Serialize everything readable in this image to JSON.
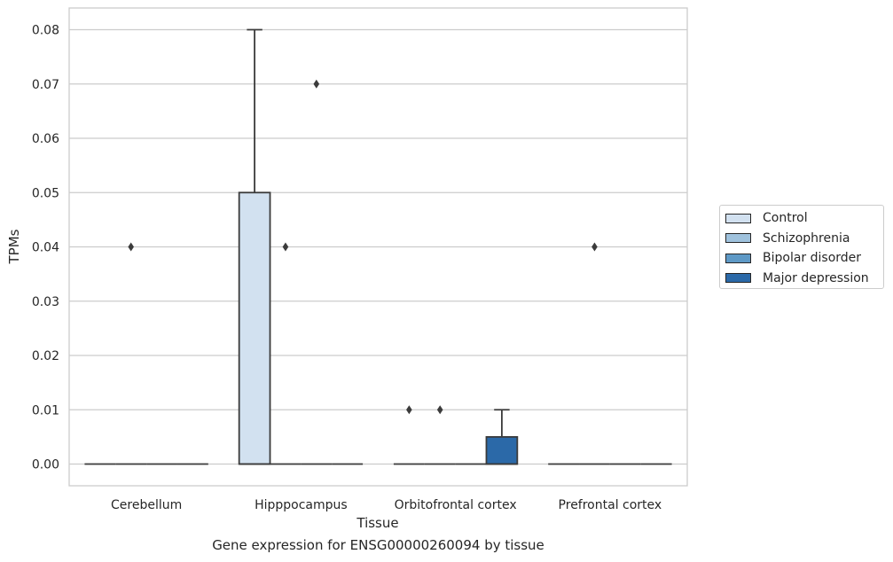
{
  "chart_data": {
    "type": "box",
    "xlabel": "Tissue",
    "ylabel": "TPMs",
    "caption": "Gene expression for ENSG00000260094 by tissue",
    "ylim": [
      -0.004,
      0.084
    ],
    "yticks": [
      "0.00",
      "0.01",
      "0.02",
      "0.03",
      "0.04",
      "0.05",
      "0.06",
      "0.07",
      "0.08"
    ],
    "categories": [
      "Cerebellum",
      "Hipppocampus",
      "Orbitofrontal cortex",
      "Prefrontal cortex"
    ],
    "grid": "horizontal",
    "legend_position": "right",
    "series": [
      {
        "name": "Control",
        "color": "#d2e1f0",
        "boxes": [
          {
            "q1": 0,
            "median": 0,
            "q3": 0,
            "whisker_low": 0,
            "whisker_high": 0,
            "outliers": []
          },
          {
            "q1": 0,
            "median": 0,
            "q3": 0.05,
            "whisker_low": 0,
            "whisker_high": 0.08,
            "outliers": []
          },
          {
            "q1": 0,
            "median": 0,
            "q3": 0,
            "whisker_low": 0,
            "whisker_high": 0,
            "outliers": [
              0.01
            ]
          },
          {
            "q1": 0,
            "median": 0,
            "q3": 0,
            "whisker_low": 0,
            "whisker_high": 0,
            "outliers": []
          }
        ]
      },
      {
        "name": "Schizophrenia",
        "color": "#9fc2dd",
        "boxes": [
          {
            "q1": 0,
            "median": 0,
            "q3": 0,
            "whisker_low": 0,
            "whisker_high": 0,
            "outliers": [
              0.04
            ]
          },
          {
            "q1": 0,
            "median": 0,
            "q3": 0,
            "whisker_low": 0,
            "whisker_high": 0,
            "outliers": [
              0.04
            ]
          },
          {
            "q1": 0,
            "median": 0,
            "q3": 0,
            "whisker_low": 0,
            "whisker_high": 0,
            "outliers": [
              0.01
            ]
          },
          {
            "q1": 0,
            "median": 0,
            "q3": 0,
            "whisker_low": 0,
            "whisker_high": 0,
            "outliers": [
              0.04
            ]
          }
        ]
      },
      {
        "name": "Bipolar disorder",
        "color": "#5e99c6",
        "boxes": [
          {
            "q1": 0,
            "median": 0,
            "q3": 0,
            "whisker_low": 0,
            "whisker_high": 0,
            "outliers": []
          },
          {
            "q1": 0,
            "median": 0,
            "q3": 0,
            "whisker_low": 0,
            "whisker_high": 0,
            "outliers": [
              0.07
            ]
          },
          {
            "q1": 0,
            "median": 0,
            "q3": 0,
            "whisker_low": 0,
            "whisker_high": 0,
            "outliers": []
          },
          {
            "q1": 0,
            "median": 0,
            "q3": 0,
            "whisker_low": 0,
            "whisker_high": 0,
            "outliers": []
          }
        ]
      },
      {
        "name": "Major depression",
        "color": "#2b69a8",
        "boxes": [
          {
            "q1": 0,
            "median": 0,
            "q3": 0,
            "whisker_low": 0,
            "whisker_high": 0,
            "outliers": []
          },
          {
            "q1": 0,
            "median": 0,
            "q3": 0,
            "whisker_low": 0,
            "whisker_high": 0,
            "outliers": []
          },
          {
            "q1": 0,
            "median": 0,
            "q3": 0.005,
            "whisker_low": 0,
            "whisker_high": 0.01,
            "outliers": []
          },
          {
            "q1": 0,
            "median": 0,
            "q3": 0,
            "whisker_low": 0,
            "whisker_high": 0,
            "outliers": []
          }
        ]
      }
    ]
  }
}
